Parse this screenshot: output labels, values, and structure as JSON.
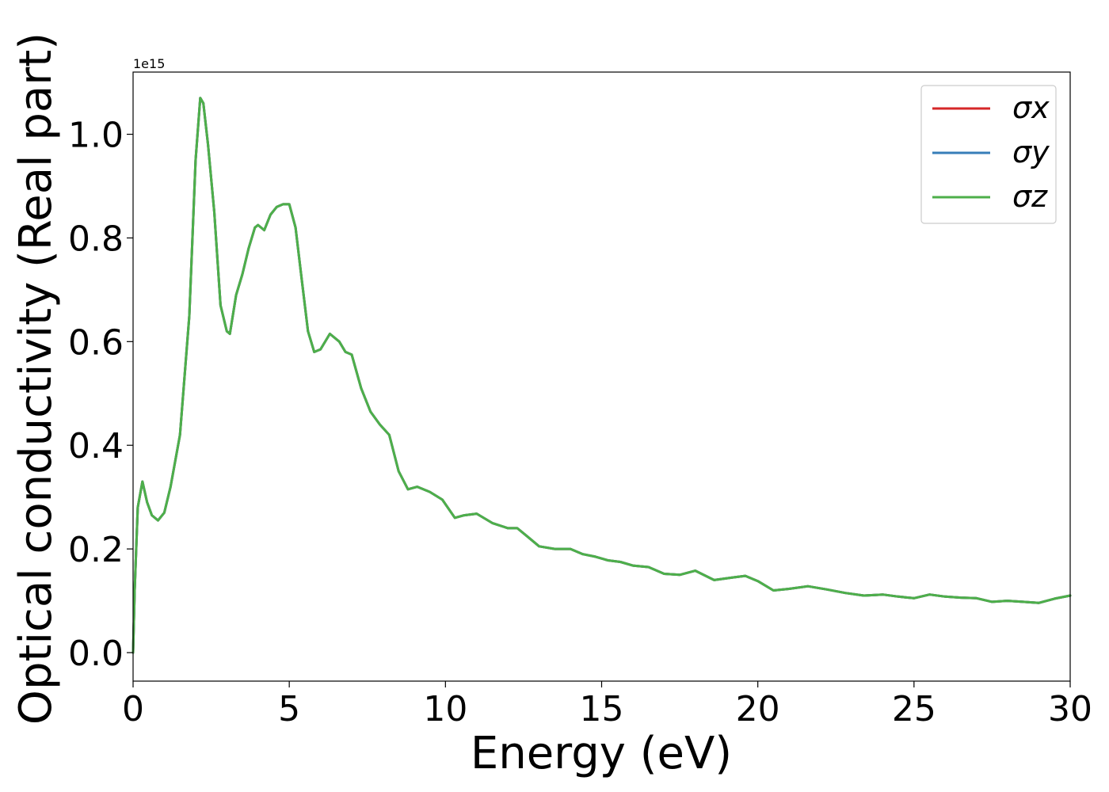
{
  "chart_data": {
    "type": "line",
    "title": "",
    "xlabel": "Energy (eV)",
    "ylabel": "Optical conductivity (Real part)",
    "y_scale_label": "1e15",
    "y_multiplier": 1000000000000000.0,
    "xlim": [
      0,
      30
    ],
    "ylim": [
      -0.055,
      1.12
    ],
    "xticks": [
      0,
      5,
      10,
      15,
      20,
      25,
      30
    ],
    "xtick_labels": [
      "0",
      "5",
      "10",
      "15",
      "20",
      "25",
      "30"
    ],
    "yticks": [
      0.0,
      0.2,
      0.4,
      0.6,
      0.8,
      1.0
    ],
    "ytick_labels": [
      "0.0",
      "0.2",
      "0.4",
      "0.6",
      "0.8",
      "1.0"
    ],
    "grid": false,
    "legend_position": "top-right",
    "x": [
      0,
      0.05,
      0.15,
      0.3,
      0.45,
      0.6,
      0.8,
      1.0,
      1.2,
      1.5,
      1.8,
      2.0,
      2.15,
      2.25,
      2.4,
      2.6,
      2.8,
      3.0,
      3.1,
      3.3,
      3.5,
      3.7,
      3.9,
      4.0,
      4.2,
      4.4,
      4.6,
      4.8,
      5.0,
      5.2,
      5.4,
      5.6,
      5.8,
      6.0,
      6.3,
      6.6,
      6.8,
      7.0,
      7.3,
      7.6,
      7.9,
      8.2,
      8.5,
      8.8,
      9.1,
      9.5,
      9.9,
      10.3,
      10.6,
      11.0,
      11.5,
      12.0,
      12.3,
      12.6,
      13.0,
      13.5,
      14.0,
      14.4,
      14.8,
      15.2,
      15.6,
      16.0,
      16.5,
      17.0,
      17.5,
      18.0,
      18.6,
      19.2,
      19.6,
      20.0,
      20.5,
      21.0,
      21.6,
      22.2,
      22.8,
      23.4,
      24.0,
      24.5,
      25.0,
      25.5,
      26.0,
      26.5,
      27.0,
      27.5,
      28.0,
      28.5,
      29.0,
      29.5,
      30.0
    ],
    "series": [
      {
        "name": "σx",
        "color": "#d62728",
        "values": [
          0.0,
          0.12,
          0.28,
          0.33,
          0.29,
          0.265,
          0.255,
          0.27,
          0.32,
          0.42,
          0.65,
          0.95,
          1.07,
          1.06,
          0.98,
          0.85,
          0.67,
          0.62,
          0.615,
          0.69,
          0.73,
          0.78,
          0.82,
          0.825,
          0.815,
          0.845,
          0.86,
          0.865,
          0.865,
          0.82,
          0.72,
          0.62,
          0.58,
          0.585,
          0.615,
          0.6,
          0.58,
          0.575,
          0.51,
          0.465,
          0.44,
          0.42,
          0.35,
          0.315,
          0.32,
          0.31,
          0.295,
          0.26,
          0.265,
          0.268,
          0.25,
          0.24,
          0.24,
          0.225,
          0.205,
          0.2,
          0.2,
          0.19,
          0.185,
          0.178,
          0.175,
          0.168,
          0.165,
          0.152,
          0.15,
          0.158,
          0.14,
          0.145,
          0.148,
          0.138,
          0.12,
          0.123,
          0.128,
          0.122,
          0.115,
          0.11,
          0.112,
          0.108,
          0.105,
          0.112,
          0.108,
          0.106,
          0.105,
          0.098,
          0.1,
          0.098,
          0.096,
          0.104,
          0.11
        ]
      },
      {
        "name": "σy",
        "color": "#377eb8",
        "values": [
          0.0,
          0.12,
          0.28,
          0.33,
          0.29,
          0.265,
          0.255,
          0.27,
          0.32,
          0.42,
          0.65,
          0.95,
          1.07,
          1.06,
          0.98,
          0.85,
          0.67,
          0.62,
          0.615,
          0.69,
          0.73,
          0.78,
          0.82,
          0.825,
          0.815,
          0.845,
          0.86,
          0.865,
          0.865,
          0.82,
          0.72,
          0.62,
          0.58,
          0.585,
          0.615,
          0.6,
          0.58,
          0.575,
          0.51,
          0.465,
          0.44,
          0.42,
          0.35,
          0.315,
          0.32,
          0.31,
          0.295,
          0.26,
          0.265,
          0.268,
          0.25,
          0.24,
          0.24,
          0.225,
          0.205,
          0.2,
          0.2,
          0.19,
          0.185,
          0.178,
          0.175,
          0.168,
          0.165,
          0.152,
          0.15,
          0.158,
          0.14,
          0.145,
          0.148,
          0.138,
          0.12,
          0.123,
          0.128,
          0.122,
          0.115,
          0.11,
          0.112,
          0.108,
          0.105,
          0.112,
          0.108,
          0.106,
          0.105,
          0.098,
          0.1,
          0.098,
          0.096,
          0.104,
          0.11
        ]
      },
      {
        "name": "σz",
        "color": "#4daf4a",
        "values": [
          0.0,
          0.12,
          0.28,
          0.33,
          0.29,
          0.265,
          0.255,
          0.27,
          0.32,
          0.42,
          0.65,
          0.95,
          1.07,
          1.06,
          0.98,
          0.85,
          0.67,
          0.62,
          0.615,
          0.69,
          0.73,
          0.78,
          0.82,
          0.825,
          0.815,
          0.845,
          0.86,
          0.865,
          0.865,
          0.82,
          0.72,
          0.62,
          0.58,
          0.585,
          0.615,
          0.6,
          0.58,
          0.575,
          0.51,
          0.465,
          0.44,
          0.42,
          0.35,
          0.315,
          0.32,
          0.31,
          0.295,
          0.26,
          0.265,
          0.268,
          0.25,
          0.24,
          0.24,
          0.225,
          0.205,
          0.2,
          0.2,
          0.19,
          0.185,
          0.178,
          0.175,
          0.168,
          0.165,
          0.152,
          0.15,
          0.158,
          0.14,
          0.145,
          0.148,
          0.138,
          0.12,
          0.123,
          0.128,
          0.122,
          0.115,
          0.11,
          0.112,
          0.108,
          0.105,
          0.112,
          0.108,
          0.106,
          0.105,
          0.098,
          0.1,
          0.098,
          0.096,
          0.104,
          0.11
        ]
      }
    ]
  }
}
